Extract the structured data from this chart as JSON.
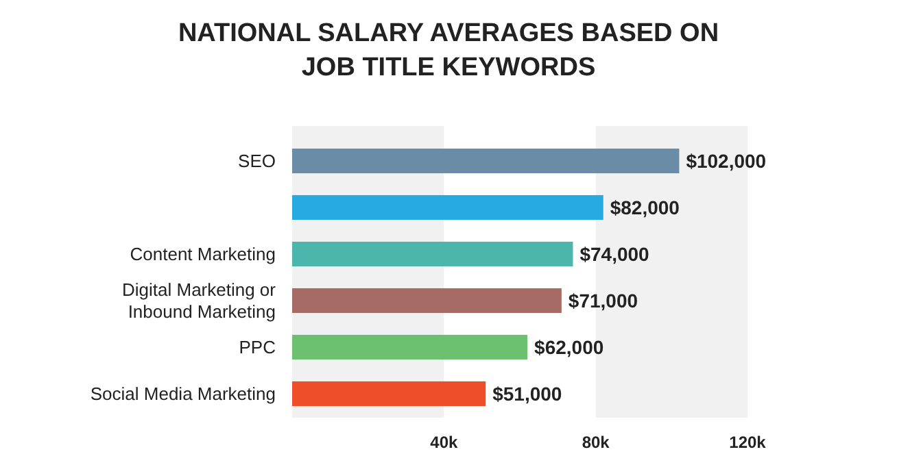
{
  "chart_data": {
    "type": "bar",
    "orientation": "horizontal",
    "title": "NATIONAL SALARY AVERAGES BASED ON JOB TITLE KEYWORDS",
    "categories": [
      "SEO",
      null,
      "Content Marketing",
      "Digital Marketing or Inbound Marketing",
      "PPC",
      "Social Media Marketing"
    ],
    "values": [
      102000,
      82000,
      74000,
      71000,
      62000,
      51000
    ],
    "colors": [
      "#6a8ca6",
      "#27aae1",
      "#4db6ac",
      "#a66b64",
      "#6cc070",
      "#ee4f2a"
    ],
    "value_labels": [
      "$102,000",
      "$82,000",
      "$74,000",
      "$71,000",
      "$62,000",
      "$51,000"
    ],
    "xlim": [
      0,
      120000
    ],
    "xticks": [
      {
        "value": 40000,
        "label": "40k"
      },
      {
        "value": 80000,
        "label": "80k"
      },
      {
        "value": 120000,
        "label": "120k"
      }
    ],
    "bands": [
      {
        "axis": "x",
        "from": 0,
        "to": 40000,
        "color": "#f1f1f1"
      },
      {
        "axis": "x",
        "from": 80000,
        "to": 120000,
        "color": "#f1f1f1"
      }
    ],
    "grid": false
  }
}
